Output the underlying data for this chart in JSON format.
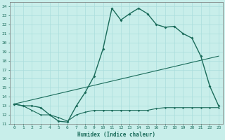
{
  "title": "",
  "xlabel": "Humidex (Indice chaleur)",
  "bg_color": "#c8eeea",
  "line_color": "#1a6b5a",
  "grid_color": "#aadddd",
  "xlim": [
    -0.5,
    23.5
  ],
  "ylim": [
    11,
    24.5
  ],
  "yticks": [
    11,
    12,
    13,
    14,
    15,
    16,
    17,
    18,
    19,
    20,
    21,
    22,
    23,
    24
  ],
  "xticks": [
    0,
    1,
    2,
    3,
    4,
    5,
    6,
    7,
    8,
    9,
    10,
    11,
    12,
    13,
    14,
    15,
    16,
    17,
    18,
    19,
    20,
    21,
    22,
    23
  ],
  "curve1_x": [
    0,
    1,
    2,
    3,
    4,
    5,
    6,
    7,
    8,
    9,
    10,
    11,
    12,
    13,
    14,
    15,
    16,
    17,
    18,
    19,
    20,
    21,
    22,
    23
  ],
  "curve1_y": [
    13.2,
    13.0,
    13.0,
    12.8,
    12.0,
    11.3,
    11.2,
    13.0,
    14.5,
    16.3,
    19.3,
    23.8,
    22.5,
    23.2,
    23.8,
    23.2,
    22.0,
    21.7,
    21.8,
    21.0,
    20.5,
    18.5,
    15.2,
    13.0
  ],
  "curve2_x": [
    0,
    1,
    2,
    3,
    4,
    5,
    6,
    7,
    8,
    9,
    10,
    11,
    12,
    13,
    14,
    15,
    16,
    17,
    18,
    19,
    20,
    21,
    22,
    23
  ],
  "curve2_y": [
    13.2,
    13.0,
    12.5,
    12.0,
    12.0,
    11.7,
    11.3,
    12.0,
    12.3,
    12.5,
    12.5,
    12.5,
    12.5,
    12.5,
    12.5,
    12.5,
    12.7,
    12.8,
    12.8,
    12.8,
    12.8,
    12.8,
    12.8,
    12.8
  ],
  "curve3_x": [
    0,
    23
  ],
  "curve3_y": [
    13.2,
    18.5
  ]
}
